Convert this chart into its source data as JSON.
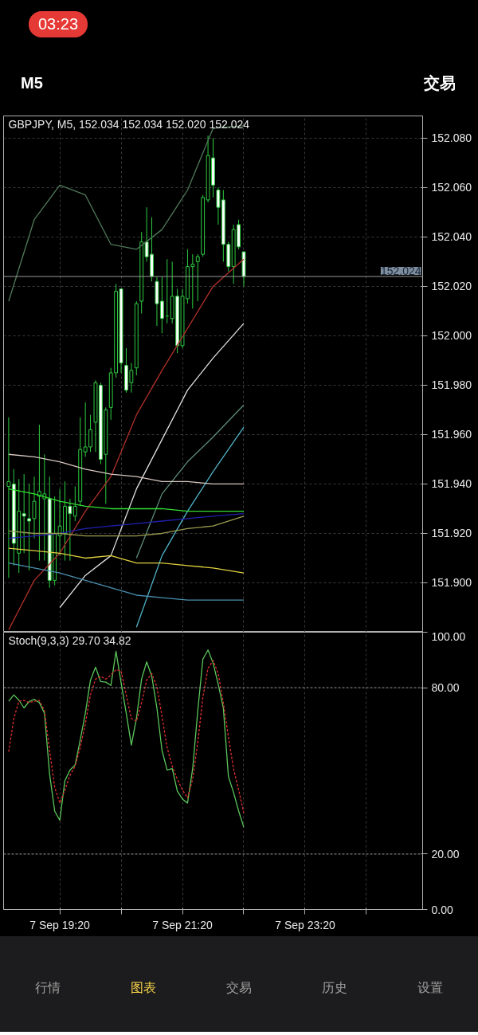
{
  "chart_data": [
    {
      "type": "candlestick",
      "title": "GBPJPY, M5, 152.034 152.034 152.020 152.024",
      "annotations": [
        "03:23",
        "M5",
        "交易"
      ],
      "x": [
        "--09-07T18:30",
        "--09-07T18:35",
        "--09-07T18:40",
        "--09-07T18:45",
        "--09-07T18:50",
        "--09-07T18:55",
        "--09-07T19:00",
        "--09-07T19:05",
        "--09-07T19:10",
        "--09-07T19:15",
        "--09-07T19:20",
        "--09-07T19:25",
        "--09-07T19:30",
        "--09-07T19:35",
        "--09-07T19:40",
        "--09-07T19:45",
        "--09-07T19:50",
        "--09-07T19:55",
        "--09-07T20:00",
        "--09-07T20:05",
        "--09-07T20:10",
        "--09-07T20:15",
        "--09-07T20:20",
        "--09-07T20:25",
        "--09-07T20:30",
        "--09-07T20:35",
        "--09-07T20:40",
        "--09-07T20:45",
        "--09-07T20:50",
        "--09-07T20:55",
        "--09-07T21:00",
        "--09-07T21:05",
        "--09-07T21:10",
        "--09-07T21:15",
        "--09-07T21:20",
        "--09-07T21:25",
        "--09-07T21:30",
        "--09-07T21:35",
        "--09-07T21:40",
        "--09-07T21:45",
        "--09-07T21:50",
        "--09-07T21:55",
        "--09-07T22:00",
        "--09-07T22:05",
        "--09-07T22:10",
        "--09-07T22:15",
        "--09-07T22:20"
      ],
      "ohlc": [
        [
          151.939,
          151.967,
          151.902,
          151.941
        ],
        [
          151.94,
          151.946,
          151.907,
          151.916
        ],
        [
          151.912,
          151.942,
          151.904,
          151.929
        ],
        [
          151.928,
          151.944,
          151.912,
          151.927
        ],
        [
          151.926,
          151.94,
          151.905,
          151.925
        ],
        [
          151.926,
          151.943,
          151.918,
          151.933
        ],
        [
          151.935,
          151.964,
          151.909,
          151.937
        ],
        [
          151.934,
          151.952,
          151.909,
          151.936
        ],
        [
          151.934,
          151.943,
          151.898,
          151.901
        ],
        [
          151.901,
          151.935,
          151.899,
          151.92
        ],
        [
          151.919,
          151.938,
          151.911,
          151.923
        ],
        [
          151.92,
          151.941,
          151.909,
          151.931
        ],
        [
          151.931,
          151.934,
          151.909,
          151.928
        ],
        [
          151.927,
          151.939,
          151.925,
          151.931
        ],
        [
          151.933,
          151.967,
          151.931,
          151.954
        ],
        [
          151.953,
          151.973,
          151.951,
          151.955
        ],
        [
          151.955,
          151.968,
          151.953,
          151.962
        ],
        [
          151.965,
          151.982,
          151.953,
          151.981
        ],
        [
          151.98,
          151.981,
          151.948,
          151.95
        ],
        [
          151.952,
          151.971,
          151.932,
          151.97
        ],
        [
          151.971,
          151.987,
          151.966,
          151.985
        ],
        [
          151.985,
          152.021,
          151.983,
          152.018
        ],
        [
          152.019,
          152.019,
          151.985,
          151.989
        ],
        [
          151.988,
          151.995,
          151.977,
          151.978
        ],
        [
          151.981,
          151.989,
          151.977,
          151.986
        ],
        [
          151.987,
          152.014,
          151.984,
          152.013
        ],
        [
          152.014,
          152.042,
          152.009,
          152.038
        ],
        [
          152.038,
          152.052,
          152.03,
          152.032
        ],
        [
          152.033,
          152.048,
          152.022,
          152.024
        ],
        [
          152.022,
          152.024,
          152.004,
          152.013
        ],
        [
          152.014,
          152.024,
          152.001,
          152.007
        ],
        [
          152.008,
          152.031,
          152.005,
          152.008
        ],
        [
          152.007,
          152.03,
          152.005,
          152.016
        ],
        [
          152.016,
          152.019,
          151.993,
          151.996
        ],
        [
          151.996,
          152.019,
          151.995,
          152.016
        ],
        [
          152.015,
          152.035,
          152.013,
          152.028
        ],
        [
          152.028,
          152.033,
          152.011,
          152.029
        ],
        [
          152.03,
          152.033,
          152.014,
          152.032
        ],
        [
          152.033,
          152.057,
          152.032,
          152.056
        ],
        [
          152.055,
          152.081,
          152.054,
          152.073
        ],
        [
          152.072,
          152.08,
          152.056,
          152.061
        ],
        [
          152.059,
          152.06,
          152.045,
          152.052
        ],
        [
          152.055,
          152.059,
          152.03,
          152.037
        ],
        [
          152.037,
          152.038,
          152.026,
          152.028
        ],
        [
          152.028,
          152.045,
          152.021,
          152.043
        ],
        [
          152.045,
          152.047,
          152.035,
          152.036
        ],
        [
          152.034,
          152.034,
          152.02,
          152.024
        ]
      ],
      "series": [
        {
          "type": "line",
          "color": "#4f7a5a",
          "x": [
            "--09-07T18:30",
            "--09-07T18:55",
            "--09-07T19:20",
            "--09-07T19:45",
            "--09-07T20:10",
            "--09-07T20:35",
            "--09-07T21:00",
            "--09-07T21:25",
            "--09-07T21:50",
            "--09-07T22:20"
          ],
          "values": [
            152.014,
            152.047,
            152.061,
            152.057,
            152.037,
            152.035,
            152.043,
            152.059,
            152.084,
            152.085
          ]
        },
        {
          "type": "line",
          "color": "#b0302a",
          "x": [
            "--09-07T18:30",
            "--09-07T18:55",
            "--09-07T19:20",
            "--09-07T19:45",
            "--09-07T20:10",
            "--09-07T20:35",
            "--09-07T21:00",
            "--09-07T21:25",
            "--09-07T21:50",
            "--09-07T22:20"
          ],
          "values": [
            151.881,
            151.901,
            151.912,
            151.929,
            151.943,
            151.968,
            151.986,
            152.003,
            152.02,
            152.031
          ]
        },
        {
          "type": "line",
          "color": "#e0e0e0",
          "x": [
            "--09-07T19:20",
            "--09-07T19:45",
            "--09-07T20:10",
            "--09-07T20:35",
            "--09-07T21:00",
            "--09-07T21:25",
            "--09-07T21:50",
            "--09-07T22:20"
          ],
          "values": [
            151.89,
            151.903,
            151.911,
            151.938,
            151.958,
            151.978,
            151.991,
            152.005
          ]
        },
        {
          "type": "line",
          "color": "#5f8f7a",
          "x": [
            "--09-07T20:35",
            "--09-07T21:00",
            "--09-07T21:25",
            "--09-07T21:50",
            "--09-07T22:20"
          ],
          "values": [
            151.91,
            151.936,
            151.949,
            151.959,
            151.972
          ]
        },
        {
          "type": "line",
          "color": "#4fb3c8",
          "x": [
            "--09-07T20:35",
            "--09-07T21:00",
            "--09-07T21:25",
            "--09-07T21:50",
            "--09-07T22:20"
          ],
          "values": [
            151.882,
            151.911,
            151.929,
            151.945,
            151.963
          ]
        },
        {
          "type": "line",
          "color": "#d8c8c0",
          "x": [
            "--09-07T18:30",
            "--09-07T18:55",
            "--09-07T19:20",
            "--09-07T19:45",
            "--09-07T20:10",
            "--09-07T20:35",
            "--09-07T21:00",
            "--09-07T21:25",
            "--09-07T21:50",
            "--09-07T22:20"
          ],
          "values": [
            151.952,
            151.951,
            151.949,
            151.946,
            151.944,
            151.943,
            151.941,
            151.941,
            151.94,
            151.94
          ]
        },
        {
          "type": "line",
          "color": "#33e033",
          "x": [
            "--09-07T18:30",
            "--09-07T18:55",
            "--09-07T19:20",
            "--09-07T19:45",
            "--09-07T20:10",
            "--09-07T20:35",
            "--09-07T21:00",
            "--09-07T21:25",
            "--09-07T21:50",
            "--09-07T22:20"
          ],
          "values": [
            151.938,
            151.936,
            151.933,
            151.931,
            151.93,
            151.93,
            151.93,
            151.929,
            151.929,
            151.929
          ]
        },
        {
          "type": "line",
          "color": "#2020b0",
          "x": [
            "--09-07T18:30",
            "--09-07T18:55",
            "--09-07T19:20",
            "--09-07T19:45",
            "--09-07T20:10",
            "--09-07T20:35",
            "--09-07T21:00",
            "--09-07T21:25",
            "--09-07T21:50",
            "--09-07T22:20"
          ],
          "values": [
            151.918,
            151.919,
            151.92,
            151.922,
            151.923,
            151.924,
            151.925,
            151.926,
            151.927,
            151.928
          ]
        },
        {
          "type": "line",
          "color": "#9a9a50",
          "x": [
            "--09-07T18:30",
            "--09-07T18:55",
            "--09-07T19:20",
            "--09-07T19:45",
            "--09-07T20:10",
            "--09-07T20:35",
            "--09-07T21:00",
            "--09-07T21:25",
            "--09-07T21:50",
            "--09-07T22:20"
          ],
          "values": [
            151.921,
            151.92,
            151.92,
            151.919,
            151.919,
            151.919,
            151.92,
            151.922,
            151.923,
            151.927
          ]
        },
        {
          "type": "line",
          "color": "#e0d040",
          "x": [
            "--09-07T18:30",
            "--09-07T18:55",
            "--09-07T19:20",
            "--09-07T19:45",
            "--09-07T20:10",
            "--09-07T20:35",
            "--09-07T21:00",
            "--09-07T21:25",
            "--09-07T21:50",
            "--09-07T22:20"
          ],
          "values": [
            151.914,
            151.913,
            151.912,
            151.91,
            151.911,
            151.908,
            151.908,
            151.907,
            151.906,
            151.904
          ]
        },
        {
          "type": "line",
          "color": "#4a90b0",
          "x": [
            "--09-07T18:30",
            "--09-07T18:55",
            "--09-07T19:20",
            "--09-07T19:45",
            "--09-07T20:10",
            "--09-07T20:35",
            "--09-07T21:00",
            "--09-07T21:25",
            "--09-07T21:50",
            "--09-07T22:20"
          ],
          "values": [
            151.908,
            151.906,
            151.904,
            151.901,
            151.898,
            151.895,
            151.894,
            151.893,
            151.893,
            151.893
          ]
        }
      ],
      "xlim": [
        "--09-07T18:25",
        "--09-08T01:15"
      ],
      "ylim": [
        151.88,
        152.089
      ],
      "xticks": [
        {
          "value": "--09-07T19:20",
          "label": null
        },
        {
          "value": "--09-07T20:20",
          "label": null
        },
        {
          "value": "--09-07T21:20",
          "label": null
        },
        {
          "value": "--09-07T22:20",
          "label": null
        },
        {
          "value": "--09-07T23:20",
          "label": null
        },
        {
          "value": "--09-08T00:20",
          "label": null
        }
      ],
      "yticks": [
        {
          "value": 151.9,
          "label": "151.900"
        },
        {
          "value": 151.92,
          "label": "151.920"
        },
        {
          "value": 151.94,
          "label": "151.940"
        },
        {
          "value": 151.96,
          "label": "151.960"
        },
        {
          "value": 151.98,
          "label": "151.980"
        },
        {
          "value": 152.0,
          "label": "152.000"
        },
        {
          "value": 152.02,
          "label": "152.020"
        },
        {
          "value": 152.04,
          "label": "152.040"
        },
        {
          "value": 152.06,
          "label": "152.060"
        },
        {
          "value": 152.08,
          "label": "152.080"
        }
      ],
      "grid": true,
      "tick_labels": "y",
      "ref_lines": [
        {
          "axis": "y",
          "value": 152.024,
          "label": "152.024",
          "color": "#9a9a9a",
          "line_style": "solid"
        }
      ]
    },
    {
      "type": "line",
      "title": "Stoch(9,3,3) 29.70 34.82",
      "annotations": [
        "行情",
        "图表",
        "交易",
        "历史",
        "设置"
      ],
      "x": [
        "--09-07T18:30",
        "--09-07T18:35",
        "--09-07T18:40",
        "--09-07T18:45",
        "--09-07T18:50",
        "--09-07T18:55",
        "--09-07T19:00",
        "--09-07T19:05",
        "--09-07T19:10",
        "--09-07T19:15",
        "--09-07T19:20",
        "--09-07T19:25",
        "--09-07T19:30",
        "--09-07T19:35",
        "--09-07T19:40",
        "--09-07T19:45",
        "--09-07T19:50",
        "--09-07T19:55",
        "--09-07T20:00",
        "--09-07T20:05",
        "--09-07T20:10",
        "--09-07T20:15",
        "--09-07T20:20",
        "--09-07T20:25",
        "--09-07T20:30",
        "--09-07T20:35",
        "--09-07T20:40",
        "--09-07T20:45",
        "--09-07T20:50",
        "--09-07T20:55",
        "--09-07T21:00",
        "--09-07T21:05",
        "--09-07T21:10",
        "--09-07T21:15",
        "--09-07T21:20",
        "--09-07T21:25",
        "--09-07T21:30",
        "--09-07T21:35",
        "--09-07T21:40",
        "--09-07T21:45",
        "--09-07T21:50",
        "--09-07T21:55",
        "--09-07T22:00",
        "--09-07T22:05",
        "--09-07T22:10",
        "--09-07T22:15",
        "--09-07T22:20"
      ],
      "series": [
        {
          "color": "#5cc85c",
          "line_style": "solid",
          "values": [
            75.1,
            77.4,
            75.5,
            72.7,
            75.0,
            75.8,
            74.6,
            70.8,
            48.9,
            35.5,
            32.2,
            46.5,
            50.3,
            52.2,
            61.2,
            70.8,
            82.7,
            87.4,
            82.2,
            82.0,
            80.8,
            93.1,
            81.7,
            70.8,
            59.3,
            68.9,
            83.1,
            89.3,
            84.1,
            72.7,
            57.4,
            50.3,
            50.8,
            42.7,
            39.8,
            38.4,
            50.8,
            71.7,
            90.3,
            93.6,
            88.9,
            81.2,
            72.7,
            47.9,
            42.2,
            35.5,
            29.7
          ]
        },
        {
          "color": "#e03030",
          "line_style": "dashed",
          "values": [
            56.9,
            68.9,
            75.1,
            75.4,
            74.6,
            75.1,
            75.4,
            71.7,
            57.4,
            44.1,
            38.4,
            43.1,
            48.4,
            51.7,
            58.4,
            67.0,
            77.4,
            83.1,
            84.1,
            83.1,
            84.6,
            86.5,
            86.0,
            77.4,
            68.9,
            67.9,
            74.6,
            82.7,
            85.1,
            80.3,
            69.8,
            58.4,
            51.7,
            47.0,
            43.1,
            40.3,
            47.0,
            60.3,
            76.5,
            87.0,
            89.8,
            85.1,
            74.6,
            62.2,
            50.8,
            43.1,
            34.82
          ]
        }
      ],
      "xlim": [
        "--09-07T18:25",
        "--09-08T01:15"
      ],
      "ylim": [
        0,
        100
      ],
      "xticks": [
        {
          "value": "--09-07T19:20",
          "label": "7 Sep 19:20"
        },
        {
          "value": "--09-07T20:20",
          "label": null
        },
        {
          "value": "--09-07T21:20",
          "label": "7 Sep 21:20"
        },
        {
          "value": "--09-07T22:20",
          "label": null
        },
        {
          "value": "--09-07T23:20",
          "label": "7 Sep 23:20"
        },
        {
          "value": "--09-08T00:20",
          "label": null
        }
      ],
      "yticks": [
        {
          "value": 0,
          "label": "0.00"
        },
        {
          "value": 20,
          "label": "20.00"
        },
        {
          "value": 80,
          "label": "80.00"
        },
        {
          "value": 100,
          "label": "100.00"
        }
      ],
      "grid": "x",
      "ref_lines": [
        {
          "axis": "y",
          "value": 20,
          "color": "#9a9a9a",
          "line_style": "dashed"
        },
        {
          "axis": "y",
          "value": 80,
          "color": "#9a9a9a",
          "line_style": "dashed"
        }
      ]
    }
  ]
}
